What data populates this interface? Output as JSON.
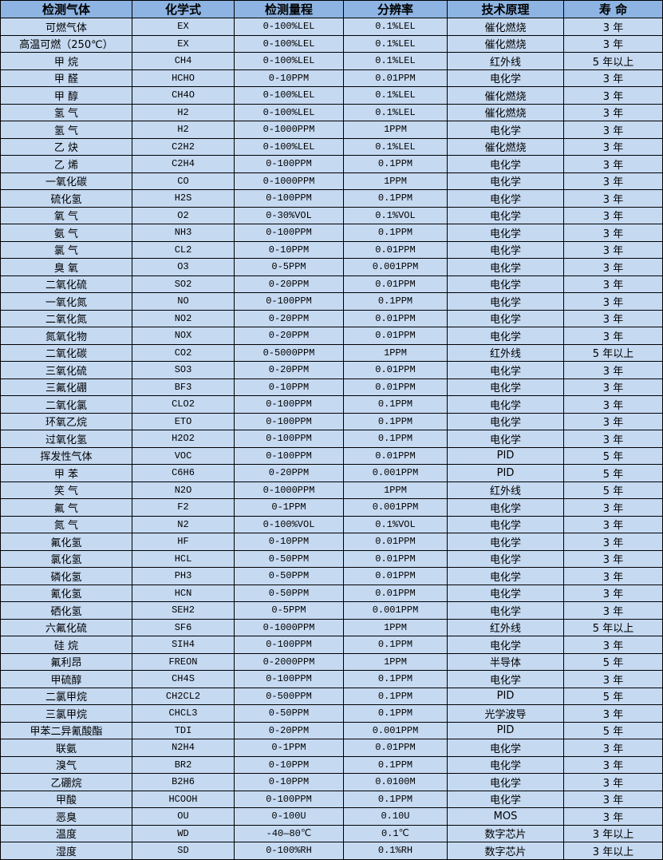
{
  "colors": {
    "header_bg": "#8db4e2",
    "row_bg": "#c5d9f1",
    "border": "#000000"
  },
  "headers": [
    "检测气体",
    "化学式",
    "检测量程",
    "分辨率",
    "技术原理",
    "寿 命"
  ],
  "rows": [
    [
      "可燃气体",
      "EX",
      "0-100%LEL",
      "0.1%LEL",
      "催化燃烧",
      "3 年"
    ],
    [
      "高温可燃（250℃）",
      "EX",
      "0-100%LEL",
      "0.1%LEL",
      "催化燃烧",
      "3 年"
    ],
    [
      "甲 烷",
      "CH4",
      "0-100%LEL",
      "0.1%LEL",
      "红外线",
      "5 年以上"
    ],
    [
      "甲 醛",
      "HCHO",
      "0-10PPM",
      "0.01PPM",
      "电化学",
      "3 年"
    ],
    [
      "甲 醇",
      "CH4O",
      "0-100%LEL",
      "0.1%LEL",
      "催化燃烧",
      "3 年"
    ],
    [
      "氢 气",
      "H2",
      "0-100%LEL",
      "0.1%LEL",
      "催化燃烧",
      "3 年"
    ],
    [
      "氢 气",
      "H2",
      "0-1000PPM",
      "1PPM",
      "电化学",
      "3 年"
    ],
    [
      "乙 炔",
      "C2H2",
      "0-100%LEL",
      "0.1%LEL",
      "催化燃烧",
      "3 年"
    ],
    [
      "乙 烯",
      "C2H4",
      "0-100PPM",
      "0.1PPM",
      "电化学",
      "3 年"
    ],
    [
      "一氧化碳",
      "CO",
      "0-1000PPM",
      "1PPM",
      "电化学",
      "3 年"
    ],
    [
      "硫化氢",
      "H2S",
      "0-100PPM",
      "0.1PPM",
      "电化学",
      "3 年"
    ],
    [
      "氧 气",
      "O2",
      "0-30%VOL",
      "0.1%VOL",
      "电化学",
      "3 年"
    ],
    [
      "氨 气",
      "NH3",
      "0-100PPM",
      "0.1PPM",
      "电化学",
      "3 年"
    ],
    [
      "氯 气",
      "CL2",
      "0-10PPM",
      "0.01PPM",
      "电化学",
      "3 年"
    ],
    [
      "臭 氧",
      "O3",
      "0-5PPM",
      "0.001PPM",
      "电化学",
      "3 年"
    ],
    [
      "二氧化硫",
      "SO2",
      "0-20PPM",
      "0.01PPM",
      "电化学",
      "3 年"
    ],
    [
      "一氧化氮",
      "NO",
      "0-100PPM",
      "0.1PPM",
      "电化学",
      "3 年"
    ],
    [
      "二氧化氮",
      "NO2",
      "0-20PPM",
      "0.01PPM",
      "电化学",
      "3 年"
    ],
    [
      "氮氧化物",
      "NOX",
      "0-20PPM",
      "0.01PPM",
      "电化学",
      "3 年"
    ],
    [
      "二氧化碳",
      "CO2",
      "0-5000PPM",
      "1PPM",
      "红外线",
      "5 年以上"
    ],
    [
      "三氧化硫",
      "SO3",
      "0-20PPM",
      "0.01PPM",
      "电化学",
      "3 年"
    ],
    [
      "三氟化硼",
      "BF3",
      "0-10PPM",
      "0.01PPM",
      "电化学",
      "3 年"
    ],
    [
      "二氧化氯",
      "CLO2",
      "0-100PPM",
      "0.1PPM",
      "电化学",
      "3 年"
    ],
    [
      "环氧乙烷",
      "ETO",
      "0-100PPM",
      "0.1PPM",
      "电化学",
      "3 年"
    ],
    [
      "过氧化氢",
      "H2O2",
      "0-100PPM",
      "0.1PPM",
      "电化学",
      "3 年"
    ],
    [
      "挥发性气体",
      "VOC",
      "0-100PPM",
      "0.01PPM",
      "PID",
      "5 年"
    ],
    [
      "甲 苯",
      "C6H6",
      "0-20PPM",
      "0.001PPM",
      "PID",
      "5 年"
    ],
    [
      "笑 气",
      "N2O",
      "0-1000PPM",
      "1PPM",
      "红外线",
      "5 年"
    ],
    [
      "氟 气",
      "F2",
      "0-1PPM",
      "0.001PPM",
      "电化学",
      "3 年"
    ],
    [
      "氮 气",
      "N2",
      "0-100%VOL",
      "0.1%VOL",
      "电化学",
      "3 年"
    ],
    [
      "氟化氢",
      "HF",
      "0-10PPM",
      "0.01PPM",
      "电化学",
      "3 年"
    ],
    [
      "氯化氢",
      "HCL",
      "0-50PPM",
      "0.01PPM",
      "电化学",
      "3 年"
    ],
    [
      "磷化氢",
      "PH3",
      "0-50PPM",
      "0.01PPM",
      "电化学",
      "3 年"
    ],
    [
      "氰化氢",
      "HCN",
      "0-50PPM",
      "0.01PPM",
      "电化学",
      "3 年"
    ],
    [
      "硒化氢",
      "SEH2",
      "0-5PPM",
      "0.001PPM",
      "电化学",
      "3 年"
    ],
    [
      "六氟化硫",
      "SF6",
      "0-1000PPM",
      "1PPM",
      "红外线",
      "5 年以上"
    ],
    [
      "硅 烷",
      "SIH4",
      "0-100PPM",
      "0.1PPM",
      "电化学",
      "3 年"
    ],
    [
      "氟利昂",
      "FREON",
      "0-2000PPM",
      "1PPM",
      "半导体",
      "5 年"
    ],
    [
      "甲硫醇",
      "CH4S",
      "0-100PPM",
      "0.1PPM",
      "电化学",
      "3 年"
    ],
    [
      "二氯甲烷",
      "CH2CL2",
      "0-500PPM",
      "0.1PPM",
      "PID",
      "5 年"
    ],
    [
      "三氯甲烷",
      "CHCL3",
      "0-50PPM",
      "0.1PPM",
      "光学波导",
      "3 年"
    ],
    [
      "甲苯二异氰酸酯",
      "TDI",
      "0-20PPM",
      "0.001PPM",
      "PID",
      "5 年"
    ],
    [
      "联氨",
      "N2H4",
      "0-1PPM",
      "0.01PPM",
      "电化学",
      "3 年"
    ],
    [
      "溴气",
      "BR2",
      "0-10PPM",
      "0.1PPM",
      "电化学",
      "3 年"
    ],
    [
      "乙硼烷",
      "B2H6",
      "0-10PPM",
      "0.0100M",
      "电化学",
      "3 年"
    ],
    [
      "甲酸",
      "HCOOH",
      "0-100PPM",
      "0.1PPM",
      "电化学",
      "3 年"
    ],
    [
      "恶臭",
      "OU",
      "0-100U",
      "0.10U",
      "MOS",
      "3 年"
    ],
    [
      "温度",
      "WD",
      "-40—80℃",
      "0.1℃",
      "数字芯片",
      "3 年以上"
    ],
    [
      "湿度",
      "SD",
      "0-100%RH",
      "0.1%RH",
      "数字芯片",
      "3 年以上"
    ]
  ]
}
